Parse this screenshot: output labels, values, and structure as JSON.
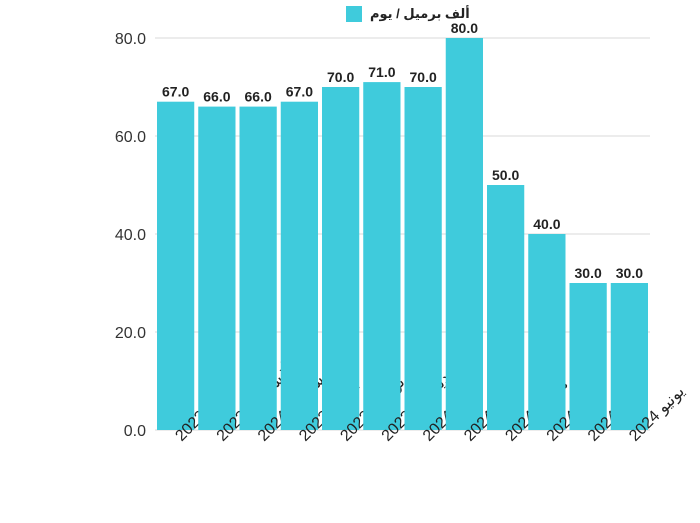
{
  "chart_data": {
    "type": "bar",
    "categories": [
      "يوليو 2023",
      "أغسطس 2023",
      "سبتمبر 2024",
      "أكتوبر 2023",
      "نوفمبر 2023",
      "ديسمبر 2023",
      "يناير 2024",
      "فبراير 2024",
      "مارس 2024",
      "أبريل 2024",
      "مايو 2024",
      "يونيو 2024"
    ],
    "series": [
      {
        "name": "ألف برميل / يوم",
        "values": [
          67.0,
          66.0,
          66.0,
          67.0,
          70.0,
          71.0,
          70.0,
          80.0,
          50.0,
          40.0,
          30.0,
          30.0
        ]
      }
    ],
    "data_labels": [
      "67.0",
      "66.0",
      "66.0",
      "67.0",
      "70.0",
      "71.0",
      "70.0",
      "80.0",
      "50.0",
      "40.0",
      "30.0",
      "30.0"
    ],
    "y_ticks": [
      "0.0",
      "20.0",
      "40.0",
      "60.0",
      "80.0"
    ],
    "ylim": [
      0,
      80
    ],
    "grid": true,
    "legend_position": "top",
    "bar_color": "#3fcbdc",
    "title": "",
    "xlabel": "",
    "ylabel": ""
  }
}
